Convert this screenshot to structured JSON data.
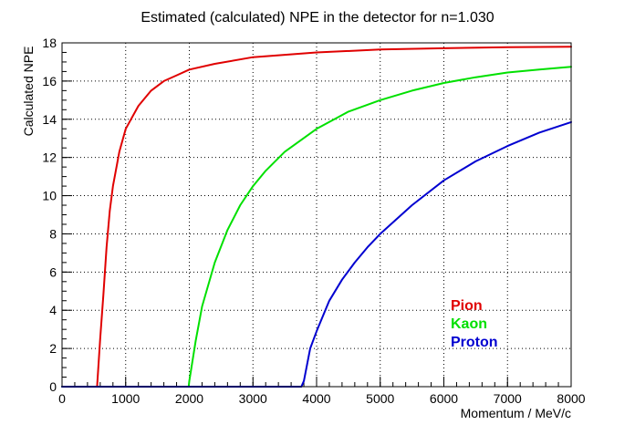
{
  "chart_data": {
    "type": "line",
    "title": "Estimated (calculated) NPE in the detector for n=1.030",
    "xlabel": "Momentum / MeV/c",
    "ylabel": "Calculated NPE",
    "xlim": [
      0,
      8000
    ],
    "ylim": [
      0,
      18
    ],
    "grid": true,
    "legend_position": "lower-right",
    "x_ticks": [
      "0",
      "1000",
      "2000",
      "3000",
      "4000",
      "5000",
      "6000",
      "7000",
      "8000"
    ],
    "y_ticks": [
      "0",
      "2",
      "4",
      "6",
      "8",
      "10",
      "12",
      "14",
      "16",
      "18"
    ],
    "series": [
      {
        "name": "Pion",
        "color": "#e00000",
        "x": [
          0,
          550,
          600,
          650,
          700,
          750,
          800,
          900,
          1000,
          1200,
          1400,
          1600,
          1800,
          2000,
          2400,
          3000,
          4000,
          5000,
          6000,
          7000,
          8000
        ],
        "y": [
          0,
          0,
          2.5,
          4.8,
          7.3,
          9.2,
          10.5,
          12.3,
          13.5,
          14.7,
          15.5,
          16.0,
          16.3,
          16.6,
          16.9,
          17.25,
          17.5,
          17.65,
          17.72,
          17.77,
          17.8
        ]
      },
      {
        "name": "Kaon",
        "color": "#00e000",
        "x": [
          0,
          1990,
          2000,
          2100,
          2200,
          2400,
          2600,
          2800,
          3000,
          3200,
          3500,
          4000,
          4500,
          5000,
          5500,
          6000,
          6500,
          7000,
          7500,
          8000
        ],
        "y": [
          0,
          0,
          0.3,
          2.4,
          4.2,
          6.5,
          8.2,
          9.5,
          10.5,
          11.3,
          12.3,
          13.5,
          14.4,
          15.0,
          15.5,
          15.9,
          16.2,
          16.45,
          16.6,
          16.75
        ]
      },
      {
        "name": "Proton",
        "color": "#0000d0",
        "x": [
          0,
          3760,
          3800,
          3900,
          4000,
          4200,
          4400,
          4600,
          4800,
          5000,
          5500,
          6000,
          6500,
          7000,
          7500,
          8000
        ],
        "y": [
          0,
          0,
          0.3,
          2.0,
          2.9,
          4.5,
          5.6,
          6.5,
          7.3,
          8.0,
          9.5,
          10.8,
          11.8,
          12.6,
          13.3,
          13.85
        ]
      }
    ]
  }
}
